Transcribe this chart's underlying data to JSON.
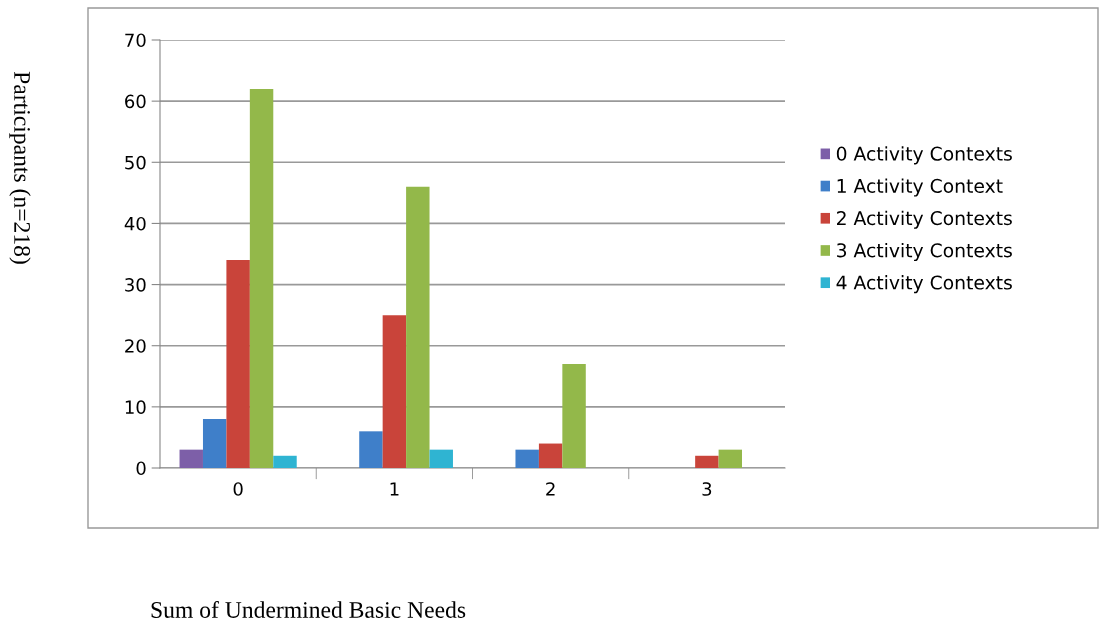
{
  "chart_data": {
    "type": "bar",
    "xlabel": "Sum of Undermined Basic Needs",
    "ylabel": "Participants (n=218)",
    "categories": [
      "0",
      "1",
      "2",
      "3"
    ],
    "series": [
      {
        "name": "0 Activity Contexts",
        "color": "#7d5fa8",
        "values": [
          3,
          0,
          0,
          0
        ]
      },
      {
        "name": "1 Activity Context",
        "color": "#3f7fc9",
        "values": [
          8,
          6,
          3,
          0
        ]
      },
      {
        "name": "2 Activity Contexts",
        "color": "#c9443a",
        "values": [
          34,
          25,
          4,
          2
        ]
      },
      {
        "name": "3 Activity Contexts",
        "color": "#93b84a",
        "values": [
          62,
          46,
          17,
          3
        ]
      },
      {
        "name": "4 Activity Contexts",
        "color": "#2fb4d2",
        "values": [
          2,
          3,
          0,
          0
        ]
      }
    ],
    "ylim": [
      0,
      70
    ],
    "yticks": [
      0,
      10,
      20,
      30,
      40,
      50,
      60,
      70
    ],
    "grid": "y",
    "legend": "right"
  }
}
